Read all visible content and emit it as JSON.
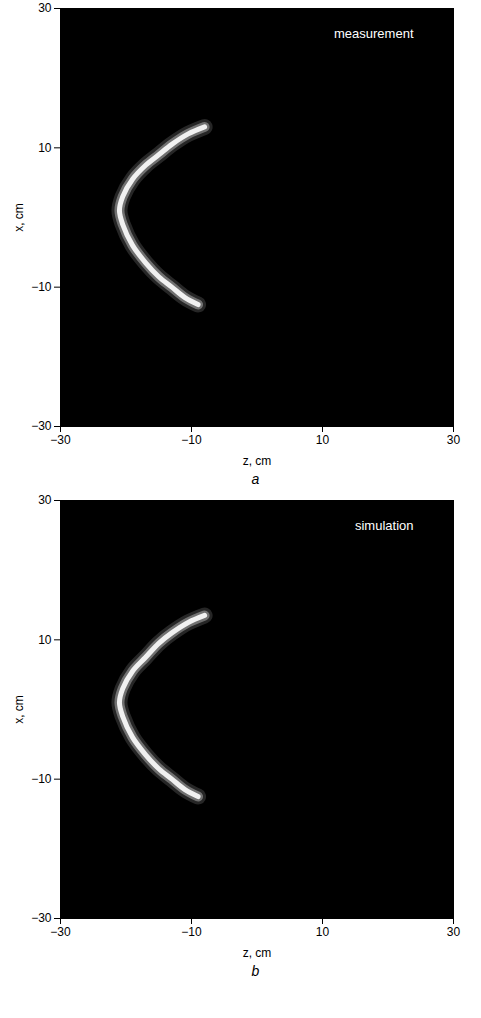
{
  "chart_data": [
    {
      "type": "line",
      "annotation": "measurement",
      "panel_label": "a",
      "xlabel": "z, cm",
      "ylabel": "x, cm",
      "xlim": [
        -30,
        30
      ],
      "ylim": [
        -30,
        30
      ],
      "xticks": [
        -30,
        -10,
        10,
        30
      ],
      "yticks": [
        -30,
        -10,
        10,
        30
      ],
      "grid": false,
      "color": "#ffffff",
      "x": [
        -8,
        -10.5,
        -13,
        -15,
        -17,
        -19,
        -20.5,
        -21,
        -20.5,
        -19,
        -17,
        -15,
        -13,
        -11,
        -9
      ],
      "values": [
        13,
        12,
        10.5,
        9,
        7.5,
        5.5,
        3,
        1,
        -1,
        -4,
        -6.5,
        -8.5,
        -10,
        -11.5,
        -12.5
      ]
    },
    {
      "type": "line",
      "annotation": "simulation",
      "panel_label": "b",
      "xlabel": "z, cm",
      "ylabel": "x, cm",
      "xlim": [
        -30,
        30
      ],
      "ylim": [
        -30,
        30
      ],
      "xticks": [
        -30,
        -10,
        10,
        30
      ],
      "yticks": [
        -30,
        -10,
        10,
        30
      ],
      "grid": false,
      "color": "#ffffff",
      "x": [
        -8,
        -10.5,
        -13,
        -15,
        -17,
        -19,
        -20.5,
        -21,
        -20.5,
        -19,
        -17,
        -15,
        -13,
        -11,
        -9
      ],
      "values": [
        13.5,
        12.5,
        11,
        9.5,
        7.5,
        5.5,
        3,
        1,
        -1,
        -4,
        -6.5,
        -8.5,
        -10,
        -11.5,
        -12.5
      ]
    }
  ]
}
